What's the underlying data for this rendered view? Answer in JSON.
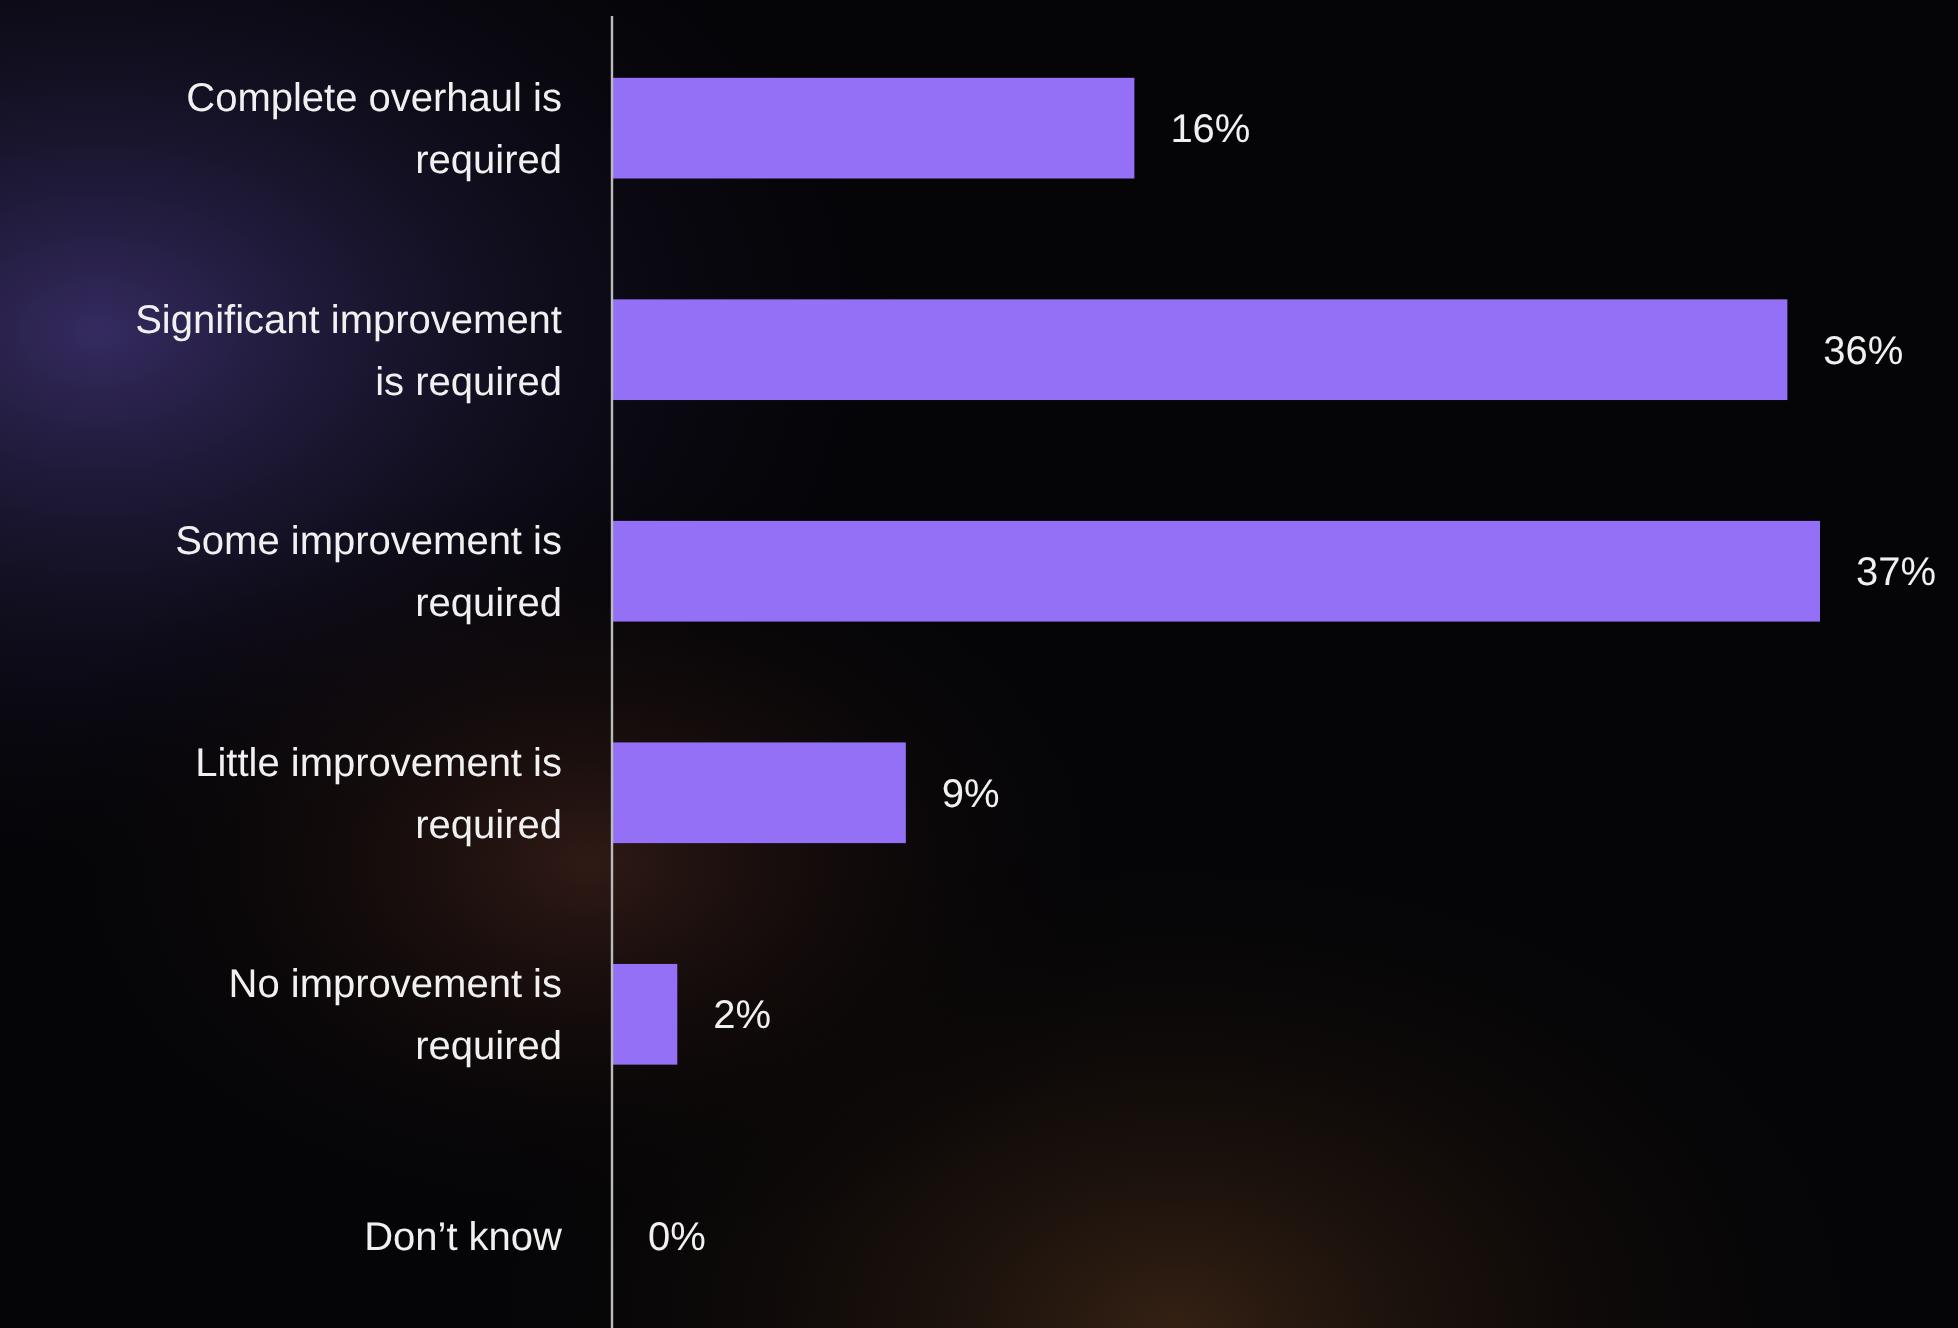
{
  "chart_data": {
    "type": "bar",
    "orientation": "horizontal",
    "categories": [
      "Complete overhaul is required",
      "Significant improvement is required",
      "Some improvement is required",
      "Little improvement is required",
      "No improvement is required",
      "Don’t know"
    ],
    "values": [
      16,
      36,
      37,
      9,
      2,
      0
    ],
    "value_labels": [
      "16%",
      "36%",
      "37%",
      "9%",
      "2%",
      "0%"
    ],
    "color": "#9370f5"
  }
}
